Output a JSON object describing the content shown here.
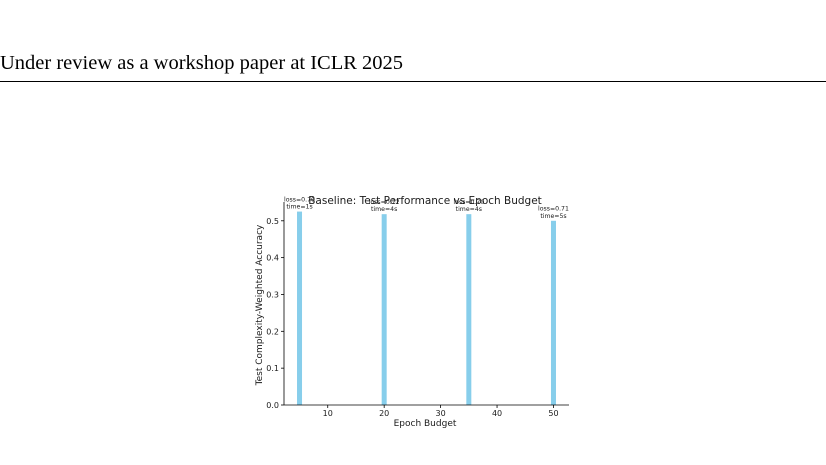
{
  "page": {
    "header": "Under review as a workshop paper at ICLR 2025"
  },
  "chart_data": {
    "type": "bar",
    "title": "Baseline: Test Performance vs Epoch Budget",
    "xlabel": "Epoch Budget",
    "ylabel": "Test Complexity-Weighted Accuracy",
    "x": [
      5,
      20,
      35,
      50
    ],
    "values": [
      0.525,
      0.518,
      0.518,
      0.5
    ],
    "annotations": [
      [
        "loss=0.70",
        "time=1s"
      ],
      [
        "loss=0.72",
        "time=4s"
      ],
      [
        "loss=0.70",
        "time=4s"
      ],
      [
        "loss=0.71",
        "time=5s"
      ]
    ],
    "xticks": [
      10,
      20,
      30,
      40,
      50
    ],
    "yticks": [
      0.0,
      0.1,
      0.2,
      0.3,
      0.4,
      0.5
    ],
    "xtick_labels": [
      "10",
      "20",
      "30",
      "40",
      "50"
    ],
    "ytick_labels": [
      "0.0",
      "0.1",
      "0.2",
      "0.3",
      "0.4",
      "0.5"
    ],
    "xlim": [
      2.25,
      52.75
    ],
    "ylim": [
      0,
      0.551
    ],
    "bar_color": "#87ceeb",
    "grid": false
  }
}
